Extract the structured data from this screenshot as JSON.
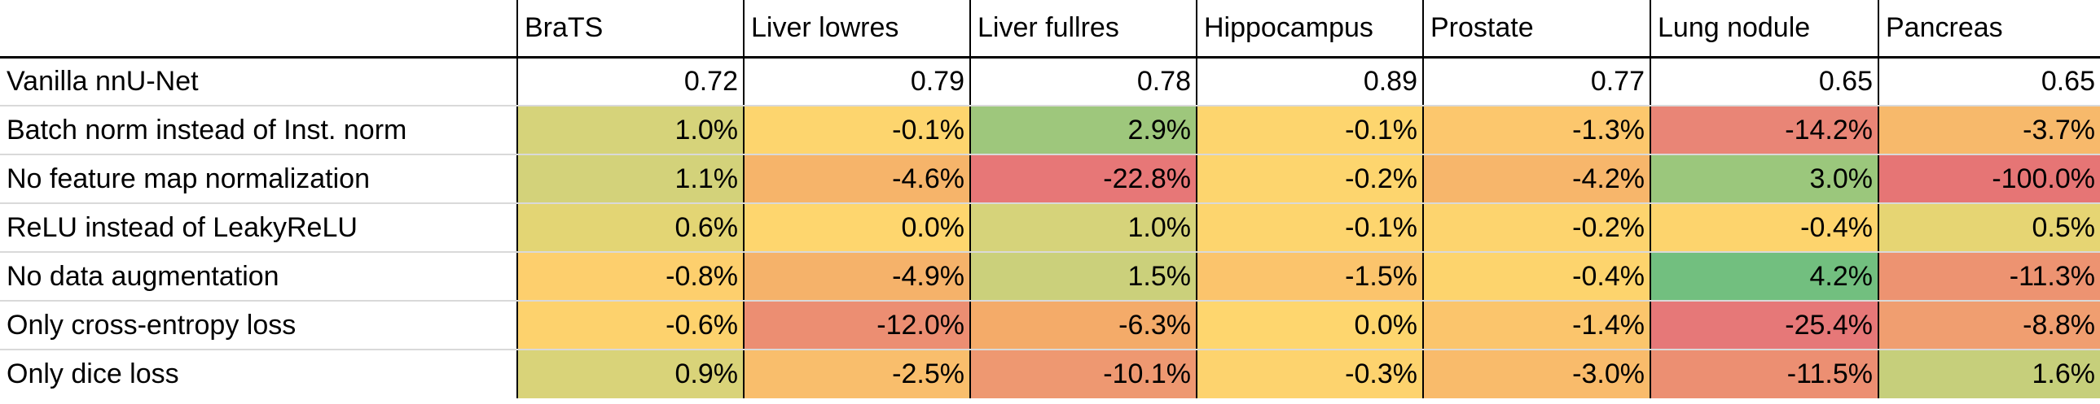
{
  "columns": [
    "",
    "BraTS",
    "Liver lowres",
    "Liver fullres",
    "Hippocampus",
    "Prostate",
    "Lung nodule",
    "Pancreas"
  ],
  "rows": [
    {
      "label": "Vanilla nnU-Net",
      "values": [
        "0.72",
        "0.79",
        "0.78",
        "0.89",
        "0.77",
        "0.65",
        "0.65"
      ],
      "colors": [
        "#ffffff",
        "#ffffff",
        "#ffffff",
        "#ffffff",
        "#ffffff",
        "#ffffff",
        "#ffffff"
      ]
    },
    {
      "label": "Batch norm instead of Inst. norm",
      "values": [
        "1.0%",
        "-0.1%",
        "2.9%",
        "-0.1%",
        "-1.3%",
        "-14.2%",
        "-3.7%"
      ],
      "colors": [
        "#d6d37a",
        "#fdd56e",
        "#9ec77c",
        "#fdd56e",
        "#fcc76d",
        "#e98576",
        "#f7b96b"
      ]
    },
    {
      "label": "No feature map normalization",
      "values": [
        "1.1%",
        "-4.6%",
        "-22.8%",
        "-0.2%",
        "-4.2%",
        "3.0%",
        "-100.0%"
      ],
      "colors": [
        "#d3d27a",
        "#f6b46a",
        "#e77777",
        "#fdd56e",
        "#f7b66b",
        "#9bc77c",
        "#e67575"
      ]
    },
    {
      "label": "ReLU instead of LeakyReLU",
      "values": [
        "0.6%",
        "0.0%",
        "1.0%",
        "-0.1%",
        "-0.2%",
        "-0.4%",
        "0.5%"
      ],
      "colors": [
        "#e3d574",
        "#fed66e",
        "#d6d37a",
        "#fdd56e",
        "#fdd46e",
        "#fdd46d",
        "#e6d573"
      ]
    },
    {
      "label": "No data augmentation",
      "values": [
        "-0.8%",
        "-4.9%",
        "1.5%",
        "-1.5%",
        "-0.4%",
        "4.2%",
        "-11.3%"
      ],
      "colors": [
        "#fdcf6d",
        "#f5b26a",
        "#cbd07b",
        "#fbc46c",
        "#fdd46d",
        "#72bf7f",
        "#ed9371"
      ]
    },
    {
      "label": "Only cross-entropy loss",
      "values": [
        "-0.6%",
        "-12.0%",
        "-6.3%",
        "0.0%",
        "-1.4%",
        "-25.4%",
        "-8.8%"
      ],
      "colors": [
        "#fdd26d",
        "#ec8e72",
        "#f4ab69",
        "#fed66e",
        "#fbc56c",
        "#e67878",
        "#f09e70"
      ]
    },
    {
      "label": "Only dice loss",
      "values": [
        "0.9%",
        "-2.5%",
        "-10.1%",
        "-0.3%",
        "-3.0%",
        "-11.5%",
        "1.6%"
      ],
      "colors": [
        "#d9d379",
        "#f9be6c",
        "#ee9871",
        "#fdd36e",
        "#f9bb6b",
        "#ec8f72",
        "#c6cf7b"
      ]
    }
  ]
}
